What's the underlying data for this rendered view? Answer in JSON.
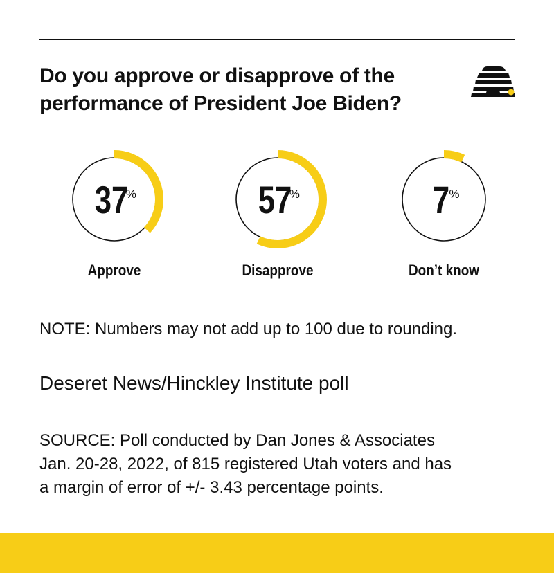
{
  "header": {
    "title_line1": "Do you approve or disapprove of the",
    "title_line2": "performance of President Joe Biden?"
  },
  "chart_data": {
    "type": "pie",
    "style": "donut-gauges",
    "unit": "%",
    "categories": [
      "Approve",
      "Disapprove",
      "Don’t know"
    ],
    "values": [
      37,
      57,
      7
    ],
    "colors": {
      "accent": "#f7cd17",
      "ring": "#111111",
      "text": "#111111"
    }
  },
  "note": "NOTE: Numbers may not add up to 100 due to rounding.",
  "poll_name": "Deseret News/Hinckley Institute poll",
  "source": {
    "line1": "SOURCE: Poll conducted by Dan Jones & Associates",
    "line2": "Jan. 20-28, 2022, of 815 registered Utah voters and has",
    "line3": "a margin of error of +/- 3.43 percentage points."
  },
  "logo_icon": "beehive-icon",
  "colors": {
    "brand_yellow": "#f7cd17",
    "rule": "#111111",
    "background": "#ffffff"
  }
}
